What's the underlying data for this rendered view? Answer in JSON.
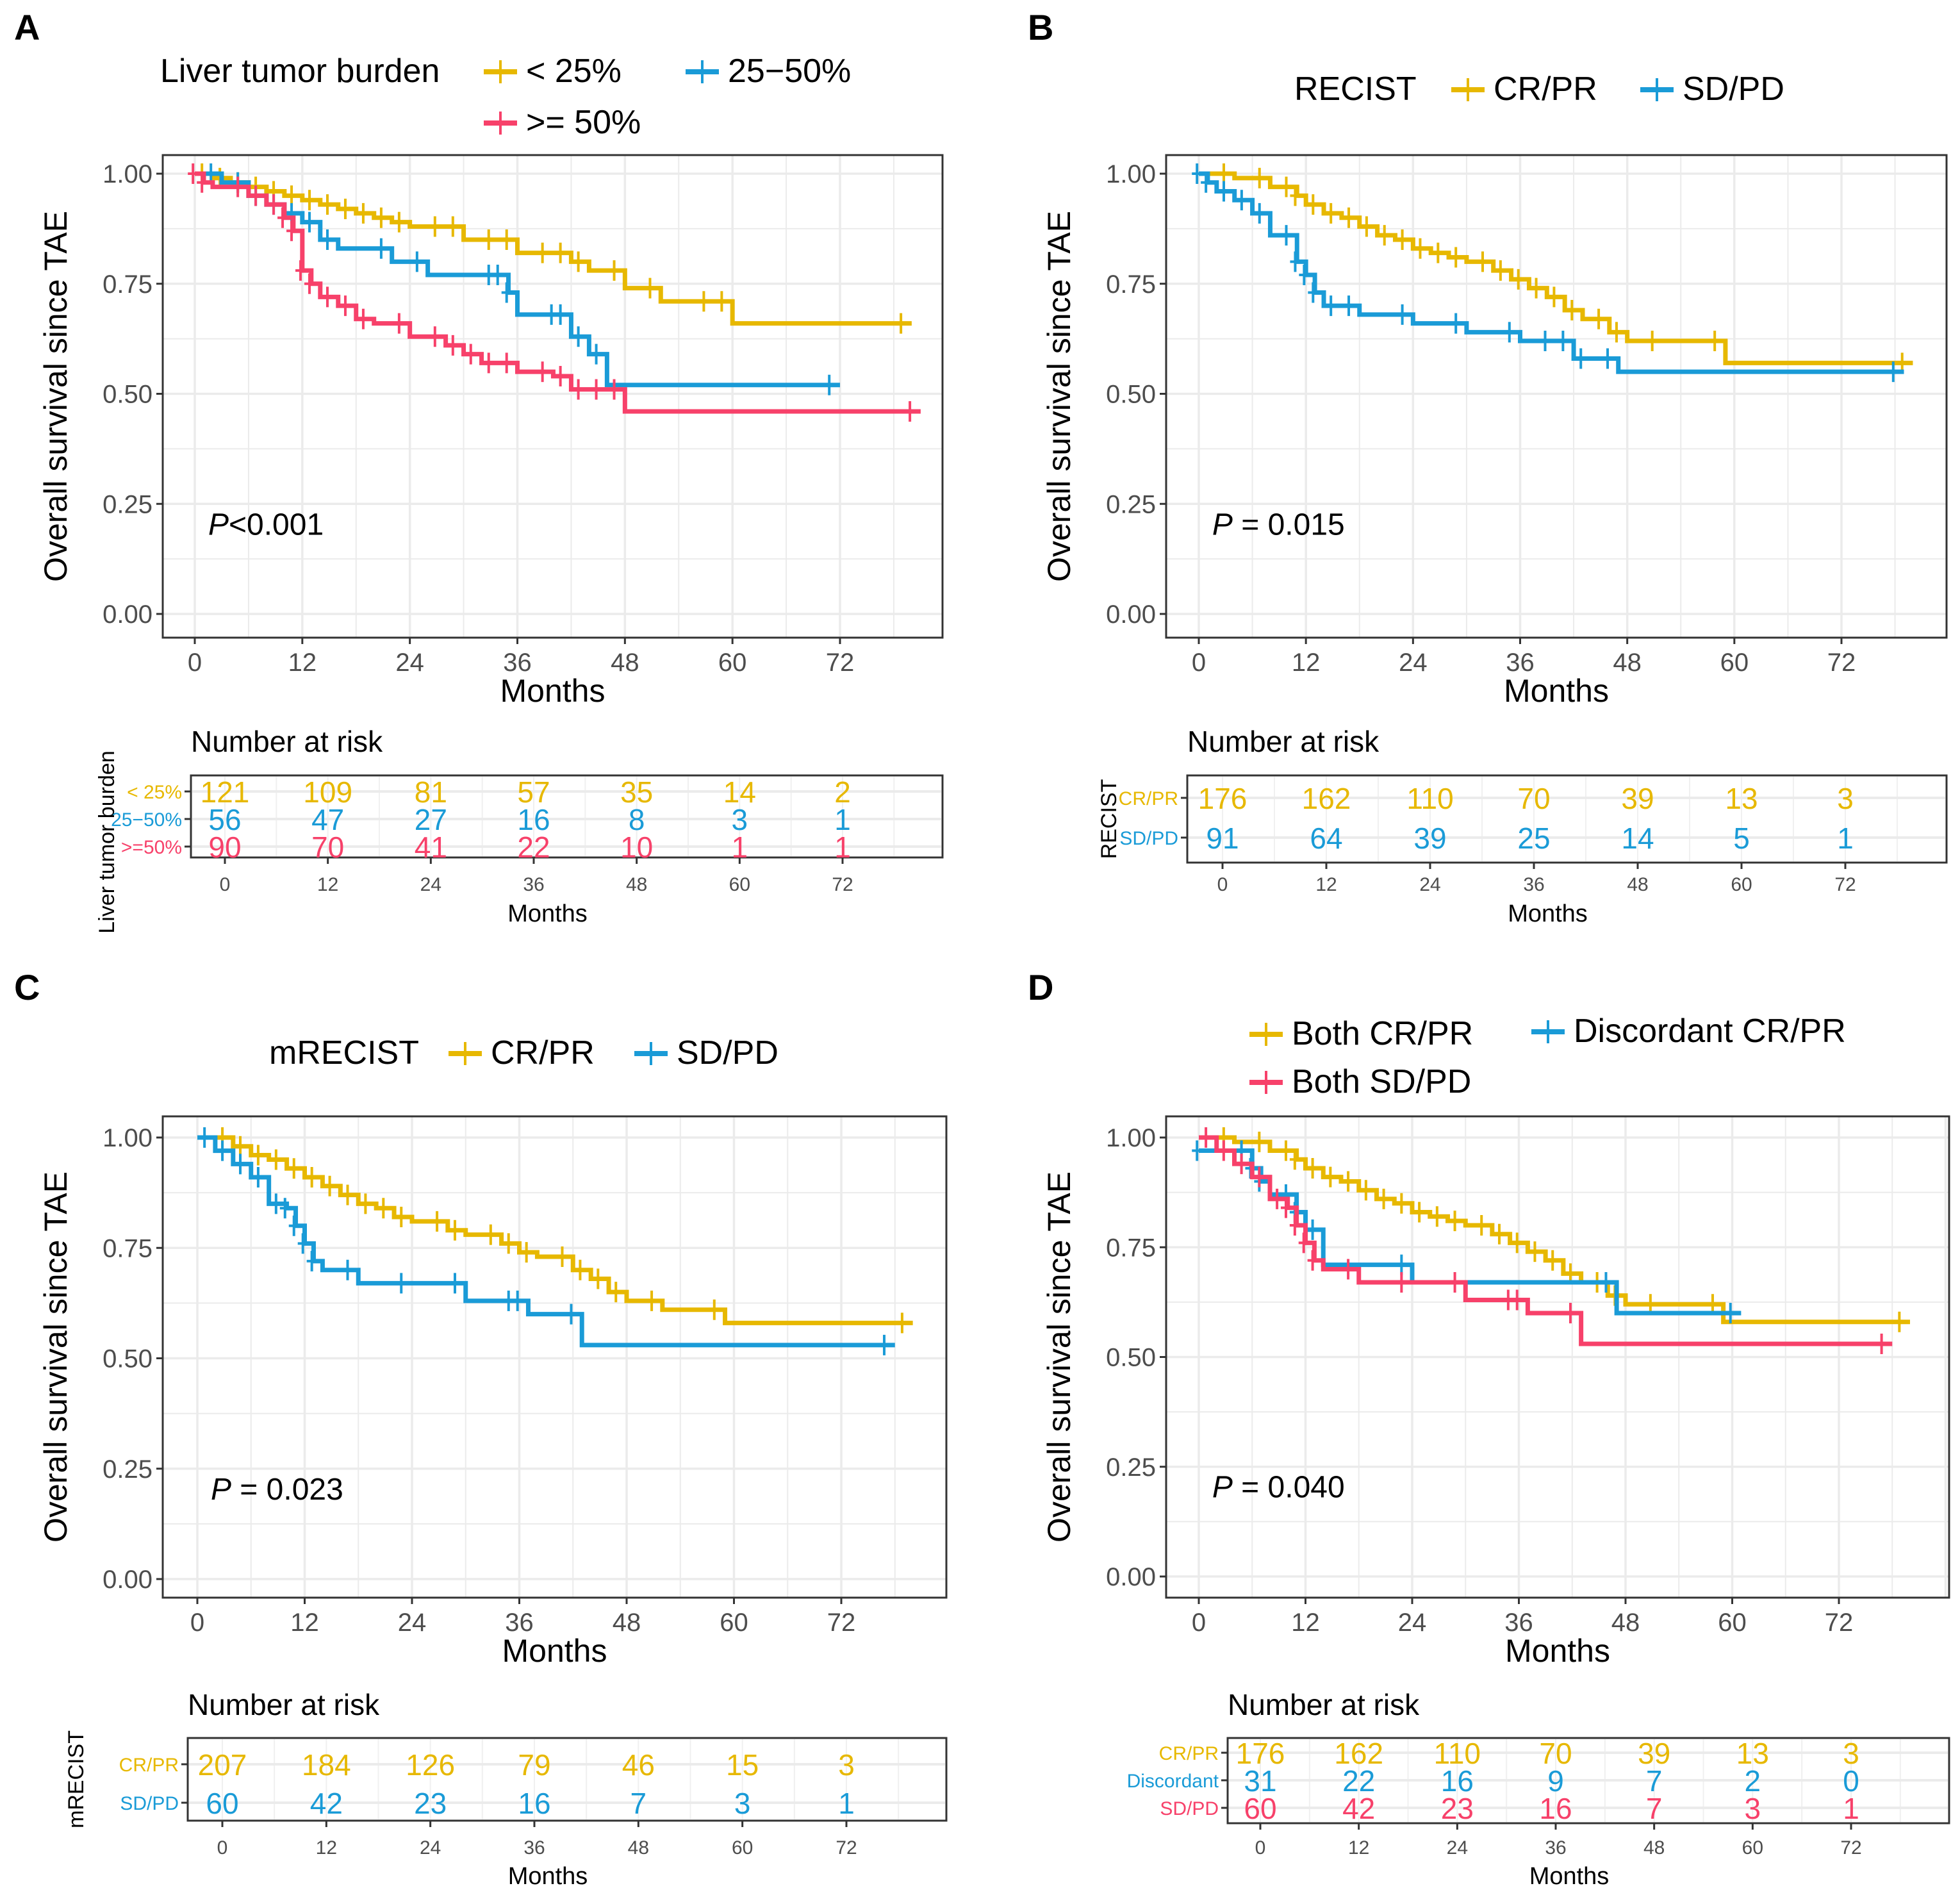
{
  "colors": {
    "gold": "#E7B800",
    "blue": "#1A9BD7",
    "pink": "#F7416A"
  },
  "chart_data": [
    {
      "panel": "A",
      "type": "line",
      "subtype": "kaplan-meier",
      "legend_title": "Liver tumor burden",
      "legend_placement": "top",
      "xlabel": "Months",
      "ylabel": "Overall survival since TAE",
      "xticks": [
        "0",
        "12",
        "24",
        "36",
        "48",
        "60",
        "72"
      ],
      "yticks": [
        "0.00",
        "0.25",
        "0.50",
        "0.75",
        "1.00"
      ],
      "xlim": [
        -3,
        82
      ],
      "ylim": [
        -0.05,
        1.05
      ],
      "grid": true,
      "annotation": {
        "italic": "P",
        "rest": "<0.001"
      },
      "series": [
        {
          "name": "< 25%",
          "color": "gold",
          "x": [
            0,
            2,
            4,
            6,
            8,
            10,
            12,
            14,
            16,
            18,
            20,
            22,
            24,
            28,
            30,
            34,
            36,
            40,
            42,
            44,
            48,
            52,
            58,
            60,
            80
          ],
          "y": [
            1,
            0.99,
            0.98,
            0.97,
            0.96,
            0.95,
            0.94,
            0.93,
            0.92,
            0.91,
            0.9,
            0.89,
            0.88,
            0.88,
            0.85,
            0.85,
            0.82,
            0.82,
            0.8,
            0.78,
            0.74,
            0.71,
            0.71,
            0.66,
            0.66
          ]
        },
        {
          "name": "25−50%",
          "color": "blue",
          "x": [
            0,
            3,
            6,
            8,
            10,
            12,
            14,
            16,
            22,
            26,
            34,
            35,
            36,
            41,
            42,
            44,
            46,
            72
          ],
          "y": [
            1,
            0.98,
            0.95,
            0.93,
            0.91,
            0.89,
            0.85,
            0.83,
            0.8,
            0.77,
            0.77,
            0.73,
            0.68,
            0.68,
            0.63,
            0.59,
            0.52,
            0.52
          ]
        },
        {
          "name": ">= 50%",
          "color": "pink",
          "x": [
            0,
            1,
            2,
            6,
            8,
            10,
            11,
            12,
            13,
            14,
            16,
            18,
            20,
            24,
            28,
            30,
            32,
            34,
            36,
            40,
            42,
            44,
            46,
            48,
            81
          ],
          "y": [
            1,
            0.98,
            0.97,
            0.95,
            0.93,
            0.9,
            0.87,
            0.78,
            0.75,
            0.72,
            0.7,
            0.67,
            0.66,
            0.63,
            0.61,
            0.59,
            0.57,
            0.57,
            0.55,
            0.54,
            0.51,
            0.51,
            0.51,
            0.46,
            0.46
          ]
        }
      ],
      "risk_table": {
        "title": "Number at risk",
        "ylabel": "Liver tumor burden",
        "xlabel": "Months",
        "times": [
          "0",
          "12",
          "24",
          "36",
          "48",
          "60",
          "72"
        ],
        "rows": [
          {
            "label": "< 25%",
            "color": "gold",
            "values": [
              "121",
              "109",
              "81",
              "57",
              "35",
              "14",
              "2"
            ]
          },
          {
            "label": "25−50%",
            "color": "blue",
            "values": [
              "56",
              "47",
              "27",
              "16",
              "8",
              "3",
              "1"
            ]
          },
          {
            "label": ">=50%",
            "color": "pink",
            "values": [
              "90",
              "70",
              "41",
              "22",
              "10",
              "1",
              "1"
            ]
          }
        ]
      }
    },
    {
      "panel": "B",
      "type": "line",
      "subtype": "kaplan-meier",
      "legend_title": "RECIST",
      "legend_placement": "top",
      "xlabel": "Months",
      "ylabel": "Overall survival since TAE",
      "xticks": [
        "0",
        "12",
        "24",
        "36",
        "48",
        "60",
        "72"
      ],
      "yticks": [
        "0.00",
        "0.25",
        "0.50",
        "0.75",
        "1.00"
      ],
      "xlim": [
        -3,
        82
      ],
      "ylim": [
        -0.05,
        1.05
      ],
      "grid": true,
      "annotation": {
        "italic": "P",
        "rest": " = 0.015"
      },
      "series": [
        {
          "name": "CR/PR",
          "color": "gold",
          "x": [
            0,
            4,
            8,
            11,
            12,
            14,
            16,
            18,
            20,
            22,
            24,
            26,
            28,
            30,
            33,
            35,
            37,
            39,
            41,
            43,
            46,
            48,
            52,
            59,
            80
          ],
          "y": [
            1,
            0.99,
            0.97,
            0.95,
            0.93,
            0.91,
            0.9,
            0.88,
            0.86,
            0.85,
            0.83,
            0.82,
            0.81,
            0.8,
            0.78,
            0.76,
            0.74,
            0.72,
            0.69,
            0.67,
            0.64,
            0.62,
            0.62,
            0.57,
            0.57
          ]
        },
        {
          "name": "SD/PD",
          "color": "blue",
          "x": [
            0,
            1,
            2,
            4,
            6,
            8,
            11,
            12,
            13,
            14,
            16,
            18,
            24,
            30,
            36,
            40,
            42,
            44,
            47,
            79
          ],
          "y": [
            1,
            0.98,
            0.96,
            0.94,
            0.91,
            0.86,
            0.8,
            0.77,
            0.73,
            0.7,
            0.7,
            0.68,
            0.66,
            0.64,
            0.62,
            0.62,
            0.58,
            0.58,
            0.55,
            0.55
          ]
        }
      ],
      "risk_table": {
        "title": "Number at risk",
        "ylabel": "RECIST",
        "xlabel": "Months",
        "times": [
          "0",
          "12",
          "24",
          "36",
          "48",
          "60",
          "72"
        ],
        "rows": [
          {
            "label": "CR/PR",
            "color": "gold",
            "values": [
              "176",
              "162",
              "110",
              "70",
              "39",
              "13",
              "3"
            ]
          },
          {
            "label": "SD/PD",
            "color": "blue",
            "values": [
              "91",
              "64",
              "39",
              "25",
              "14",
              "5",
              "1"
            ]
          }
        ]
      }
    },
    {
      "panel": "C",
      "type": "line",
      "subtype": "kaplan-meier",
      "legend_title": "mRECIST",
      "legend_placement": "top",
      "xlabel": "Months",
      "ylabel": "Overall survival since TAE",
      "xticks": [
        "0",
        "12",
        "24",
        "36",
        "48",
        "60",
        "72"
      ],
      "yticks": [
        "0.00",
        "0.25",
        "0.50",
        "0.75",
        "1.00"
      ],
      "xlim": [
        -3,
        82
      ],
      "ylim": [
        -0.05,
        1.05
      ],
      "grid": true,
      "annotation": {
        "italic": "P",
        "rest": " = 0.023"
      },
      "series": [
        {
          "name": "CR/PR",
          "color": "gold",
          "x": [
            0,
            4,
            6,
            8,
            10,
            12,
            14,
            16,
            18,
            20,
            22,
            24,
            28,
            30,
            34,
            36,
            38,
            42,
            44,
            46,
            48,
            52,
            59,
            80
          ],
          "y": [
            1,
            0.98,
            0.96,
            0.95,
            0.93,
            0.91,
            0.89,
            0.87,
            0.85,
            0.84,
            0.82,
            0.81,
            0.79,
            0.78,
            0.76,
            0.74,
            0.73,
            0.7,
            0.68,
            0.65,
            0.63,
            0.61,
            0.58,
            0.58
          ]
        },
        {
          "name": "SD/PD",
          "color": "blue",
          "x": [
            0,
            2,
            4,
            6,
            8,
            10,
            11,
            12,
            13,
            14,
            18,
            24,
            30,
            36,
            37,
            43,
            78
          ],
          "y": [
            1,
            0.97,
            0.94,
            0.91,
            0.85,
            0.84,
            0.8,
            0.76,
            0.72,
            0.7,
            0.67,
            0.67,
            0.63,
            0.63,
            0.6,
            0.53,
            0.53
          ]
        }
      ],
      "risk_table": {
        "title": "Number at risk",
        "ylabel": "mRECIST",
        "xlabel": "Months",
        "times": [
          "0",
          "12",
          "24",
          "36",
          "48",
          "60",
          "72"
        ],
        "rows": [
          {
            "label": "CR/PR",
            "color": "gold",
            "values": [
              "207",
              "184",
              "126",
              "79",
              "46",
              "15",
              "3"
            ]
          },
          {
            "label": "SD/PD",
            "color": "blue",
            "values": [
              "60",
              "42",
              "23",
              "16",
              "7",
              "3",
              "1"
            ]
          }
        ]
      }
    },
    {
      "panel": "D",
      "type": "line",
      "subtype": "kaplan-meier",
      "legend_title": "",
      "legend_placement": "top",
      "xlabel": "Months",
      "ylabel": "Overall survival since TAE",
      "xticks": [
        "0",
        "12",
        "24",
        "36",
        "48",
        "60",
        "72"
      ],
      "yticks": [
        "0.00",
        "0.25",
        "0.50",
        "0.75",
        "1.00"
      ],
      "xlim": [
        -3,
        82
      ],
      "ylim": [
        -0.05,
        1.05
      ],
      "grid": true,
      "annotation": {
        "italic": "P",
        "rest": " = 0.040"
      },
      "series": [
        {
          "name": "Both CR/PR",
          "color": "gold",
          "x": [
            0,
            4,
            8,
            11,
            12,
            14,
            16,
            18,
            20,
            22,
            24,
            26,
            28,
            30,
            33,
            35,
            37,
            39,
            41,
            43,
            46,
            48,
            52,
            59,
            80
          ],
          "y": [
            1,
            0.99,
            0.97,
            0.95,
            0.93,
            0.91,
            0.9,
            0.88,
            0.86,
            0.85,
            0.83,
            0.82,
            0.81,
            0.8,
            0.78,
            0.76,
            0.74,
            0.72,
            0.69,
            0.67,
            0.64,
            0.62,
            0.62,
            0.58,
            0.58
          ]
        },
        {
          "name": "Discordant CR/PR",
          "color": "blue",
          "x": [
            0,
            1,
            6,
            7,
            8,
            11,
            12,
            14,
            24,
            47,
            61
          ],
          "y": [
            0.97,
            0.97,
            0.93,
            0.9,
            0.87,
            0.83,
            0.79,
            0.71,
            0.67,
            0.6,
            0.6
          ]
        },
        {
          "name": "Both SD/PD",
          "color": "pink",
          "x": [
            0,
            2,
            4,
            6,
            8,
            10,
            11,
            12,
            13,
            14,
            18,
            24,
            30,
            36,
            37,
            43,
            78
          ],
          "y": [
            1,
            0.97,
            0.94,
            0.91,
            0.86,
            0.84,
            0.8,
            0.76,
            0.72,
            0.7,
            0.67,
            0.67,
            0.63,
            0.63,
            0.6,
            0.53,
            0.53
          ]
        }
      ],
      "risk_table": {
        "title": "Number at risk",
        "ylabel": "",
        "xlabel": "Months",
        "times": [
          "0",
          "12",
          "24",
          "36",
          "48",
          "60",
          "72"
        ],
        "rows": [
          {
            "label": "CR/PR",
            "color": "gold",
            "values": [
              "176",
              "162",
              "110",
              "70",
              "39",
              "13",
              "3"
            ]
          },
          {
            "label": "Discordant",
            "color": "blue",
            "values": [
              "31",
              "22",
              "16",
              "9",
              "7",
              "2",
              "0"
            ]
          },
          {
            "label": "SD/PD",
            "color": "pink",
            "values": [
              "60",
              "42",
              "23",
              "16",
              "7",
              "3",
              "1"
            ]
          }
        ]
      }
    }
  ]
}
